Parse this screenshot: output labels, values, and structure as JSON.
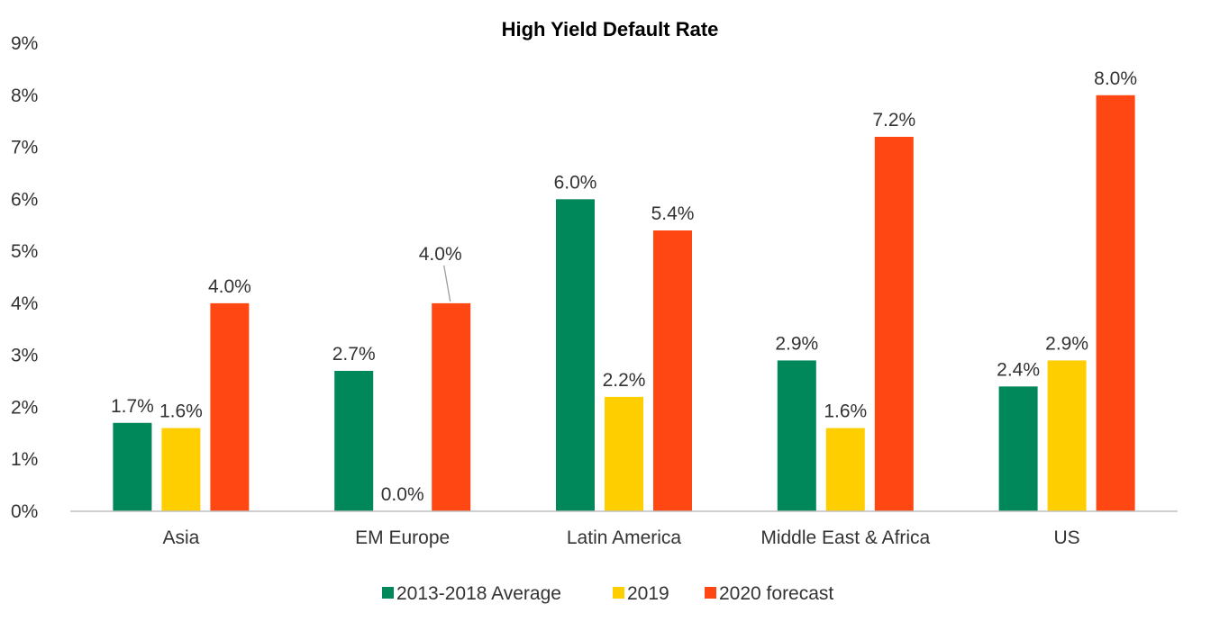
{
  "chart_data": {
    "type": "bar",
    "title": "High Yield Default Rate",
    "xlabel": "",
    "ylabel": "",
    "categories": [
      "Asia",
      "EM Europe",
      "Latin America",
      "Middle East & Africa",
      "US"
    ],
    "series": [
      {
        "name": "2013-2018 Average",
        "color": "#00875A",
        "values": [
          1.7,
          2.7,
          6.0,
          2.9,
          2.4
        ],
        "labels": [
          "1.7%",
          "2.7%",
          "6.0%",
          "2.9%",
          "2.4%"
        ]
      },
      {
        "name": "2019",
        "color": "#FFCE00",
        "values": [
          1.6,
          0.0,
          2.2,
          1.6,
          2.9
        ],
        "labels": [
          "1.6%",
          "0.0%",
          "2.2%",
          "1.6%",
          "2.9%"
        ]
      },
      {
        "name": "2020 forecast",
        "color": "#FF4713",
        "values": [
          4.0,
          4.0,
          5.4,
          7.2,
          8.0
        ],
        "labels": [
          "4.0%",
          "4.0%",
          "5.4%",
          "7.2%",
          "8.0%"
        ]
      }
    ],
    "ylim": [
      0,
      9
    ],
    "yticks": [
      0,
      1,
      2,
      3,
      4,
      5,
      6,
      7,
      8,
      9
    ],
    "ytick_labels": [
      "0%",
      "1%",
      "2%",
      "3%",
      "4%",
      "5%",
      "6%",
      "7%",
      "8%",
      "9%"
    ],
    "grid": false,
    "legend_position": "bottom"
  }
}
